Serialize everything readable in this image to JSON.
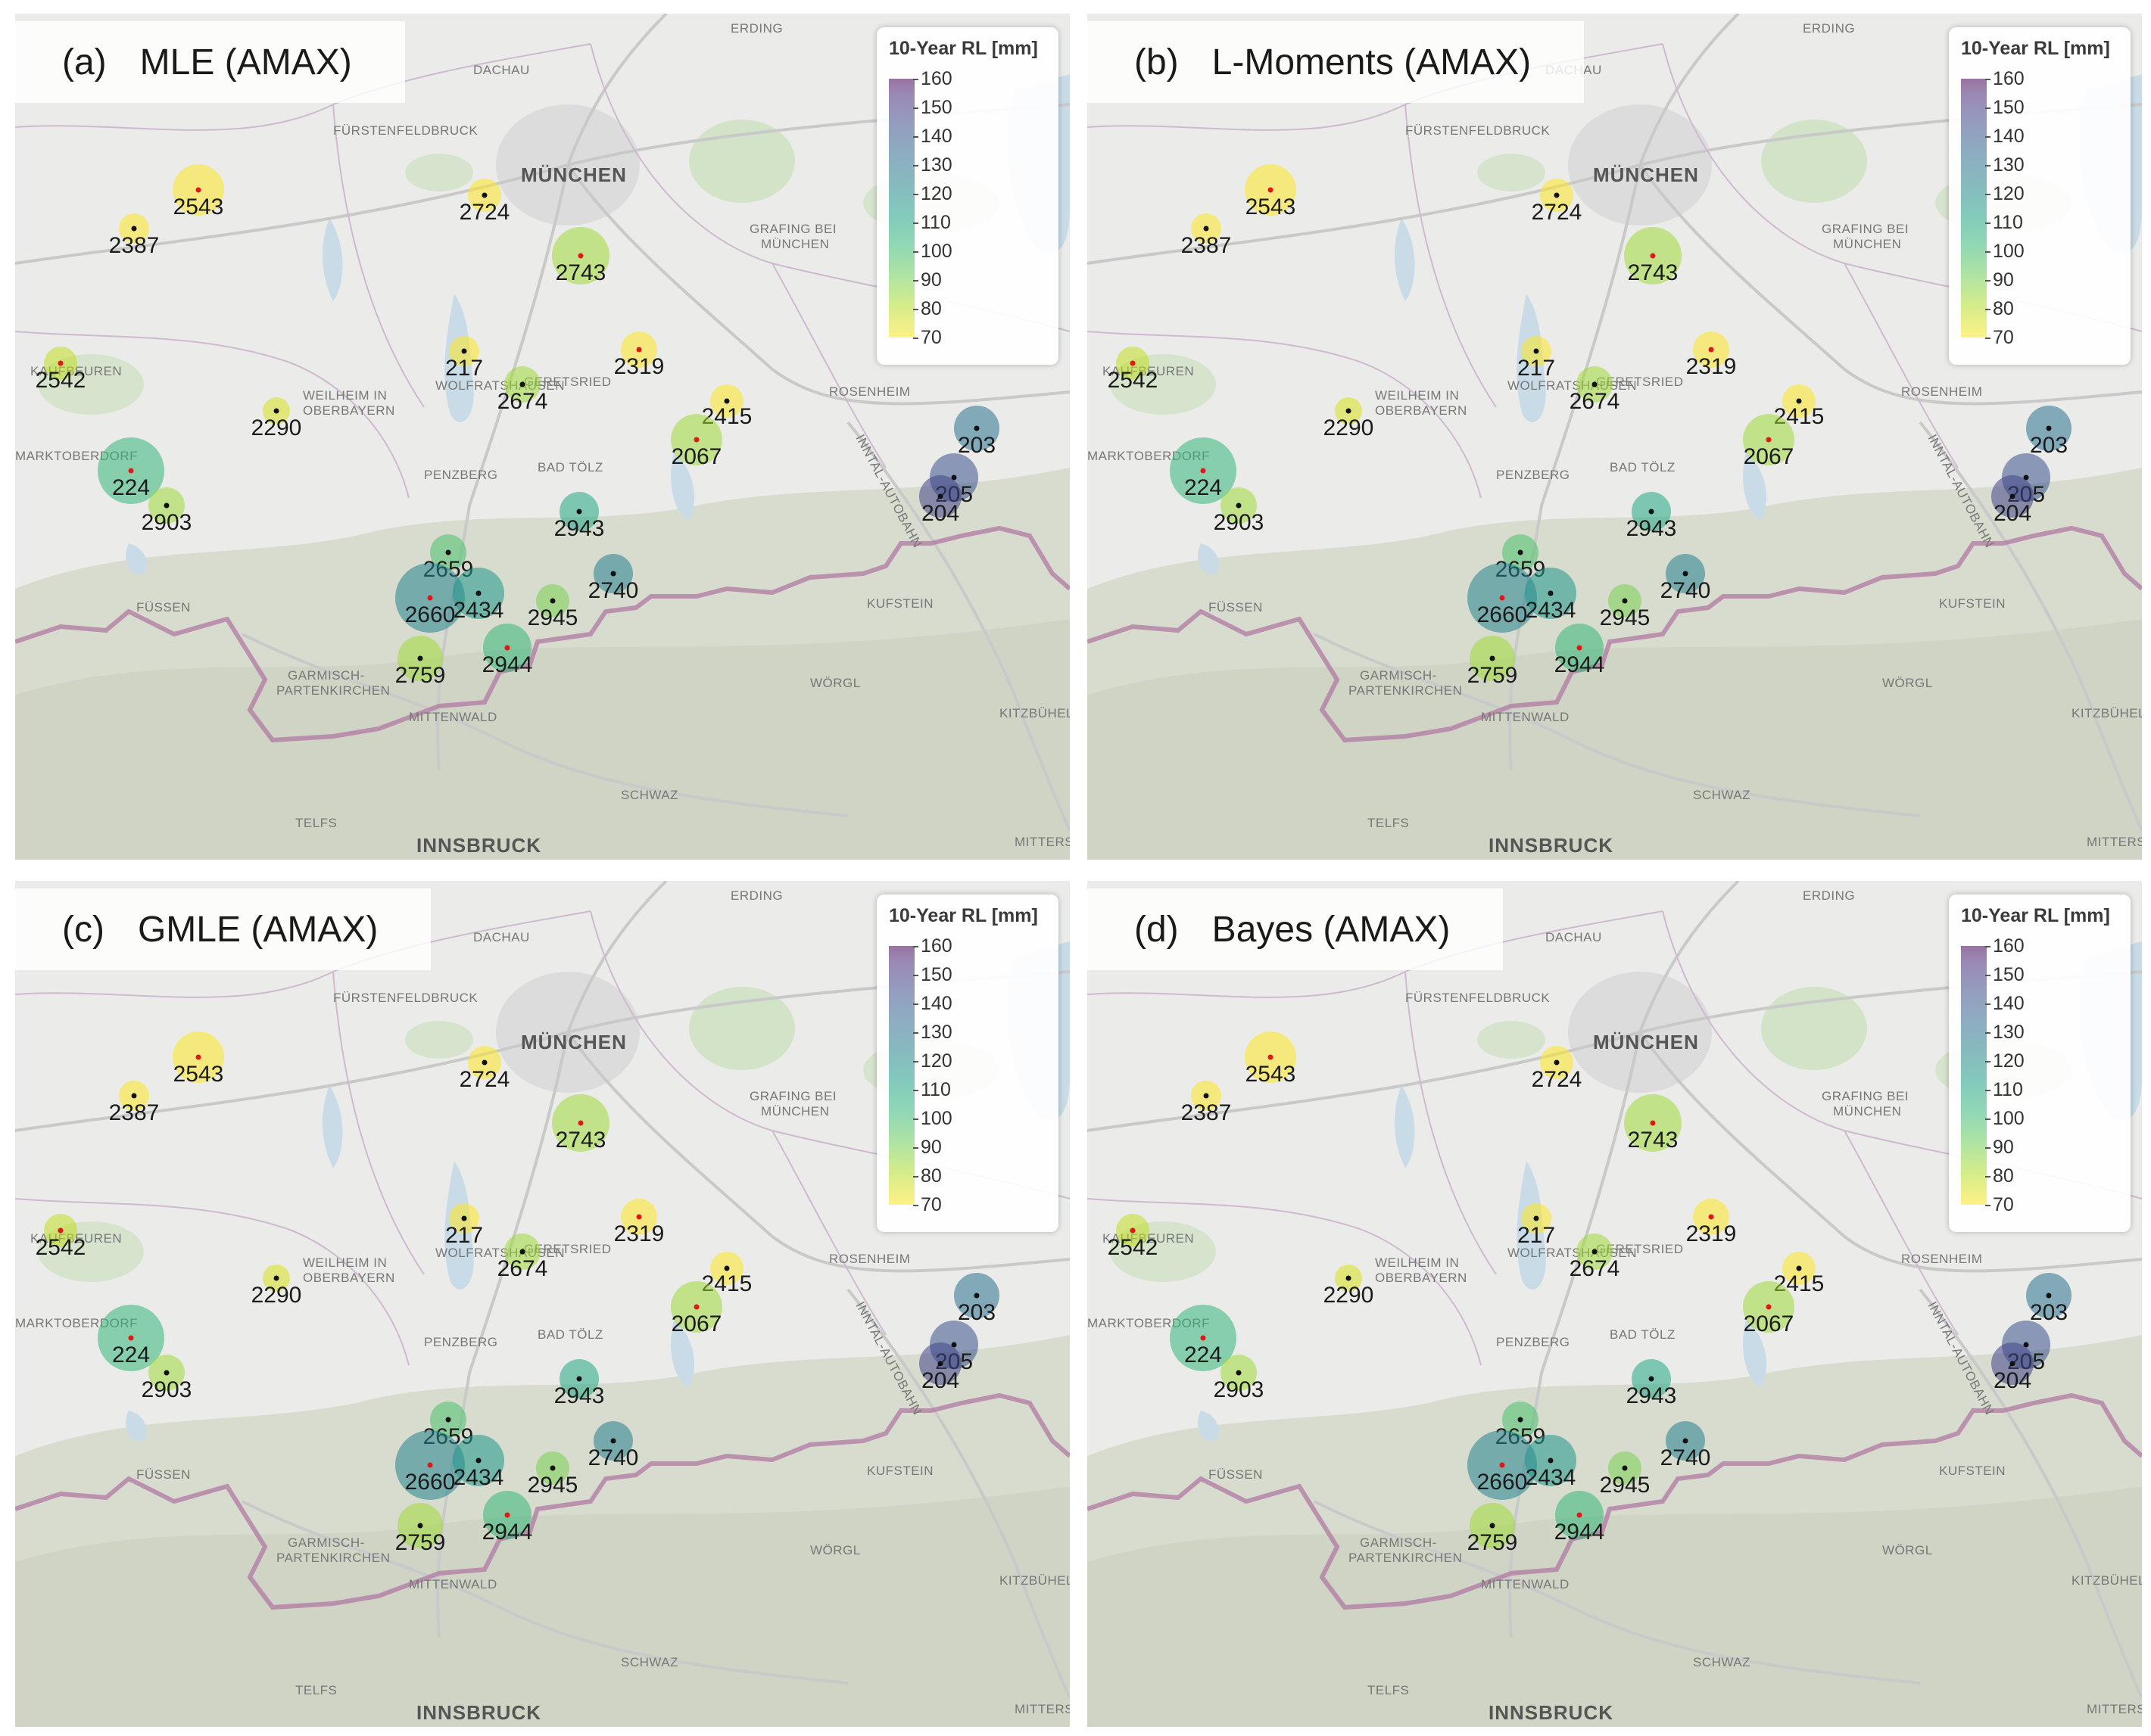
{
  "panels": [
    {
      "tag": "(a)",
      "title": "MLE (AMAX)"
    },
    {
      "tag": "(b)",
      "title": "L-Moments (AMAX)"
    },
    {
      "tag": "(c)",
      "title": "GMLE (AMAX)"
    },
    {
      "tag": "(d)",
      "title": "Bayes (AMAX)"
    }
  ],
  "legend": {
    "title": "10-Year RL [mm]",
    "ticks": [
      "160",
      "150",
      "140",
      "130",
      "120",
      "110",
      "100",
      "90",
      "80",
      "70"
    ],
    "range": [
      70,
      160
    ],
    "colormap": "viridis (reversed, semi-transparent)"
  },
  "place_labels": {
    "erding": "ERDING",
    "dachau": "DACHAU",
    "fuerstenfeldbruck": "FÜRSTENFELDBRUCK",
    "muenchen": "MÜNCHEN",
    "grafing1": "GRAFING BEI",
    "grafing2": "MÜNCHEN",
    "kaufbeuren": "KAUFBEUREN",
    "wolfratshausen": "WOLFRATSHAUSEN",
    "geretsried": "GERETSRIED",
    "weilheim1": "WEILHEIM IN",
    "weilheim2": "OBERBAYERN",
    "rosenheim": "ROSENHEIM",
    "marktoberdorf": "MARKTOBERDORF",
    "penzberg": "PENZBERG",
    "badtoelz": "BAD TÖLZ",
    "inntal": "INNTAL-AUTOBAHN",
    "fuessen": "FÜSSEN",
    "kufstein": "KUFSTEIN",
    "garmisch1": "GARMISCH-",
    "garmisch2": "PARTENKIRCHEN",
    "woergl": "WÖRGL",
    "mittenwald": "MITTENWALD",
    "kitzbuehel": "KITZBÜHEL",
    "schwaz": "SCHWAZ",
    "telfs": "TELFS",
    "innsbruck": "INNSBRUCK",
    "mittersill": "MITTERS"
  },
  "stations": [
    {
      "id": "2543",
      "color": "#fde725",
      "marker": "red"
    },
    {
      "id": "2387",
      "color": "#fde725",
      "marker": "black"
    },
    {
      "id": "2724",
      "color": "#fde725",
      "marker": "black"
    },
    {
      "id": "2743",
      "color": "#a0da39",
      "marker": "red"
    },
    {
      "id": "2542",
      "color": "#c2df23",
      "marker": "red"
    },
    {
      "id": "217",
      "color": "#fde725",
      "marker": "black"
    },
    {
      "id": "2674",
      "color": "#a0da39",
      "marker": "black"
    },
    {
      "id": "2319",
      "color": "#fde725",
      "marker": "red"
    },
    {
      "id": "2290",
      "color": "#d8e219",
      "marker": "black"
    },
    {
      "id": "2415",
      "color": "#fde725",
      "marker": "black"
    },
    {
      "id": "2067",
      "color": "#a0da39",
      "marker": "red"
    },
    {
      "id": "203",
      "color": "#2c728e",
      "marker": "black"
    },
    {
      "id": "224",
      "color": "#35b779",
      "marker": "red"
    },
    {
      "id": "2903",
      "color": "#a0da39",
      "marker": "black"
    },
    {
      "id": "205",
      "color": "#3b528b",
      "marker": "black"
    },
    {
      "id": "204",
      "color": "#414487",
      "marker": "black"
    },
    {
      "id": "2943",
      "color": "#22a884",
      "marker": "black"
    },
    {
      "id": "2659",
      "color": "#4ac16d",
      "marker": "black"
    },
    {
      "id": "2740",
      "color": "#27808e",
      "marker": "black"
    },
    {
      "id": "2660",
      "color": "#25848e",
      "marker": "red"
    },
    {
      "id": "2434",
      "color": "#1f988b",
      "marker": "black"
    },
    {
      "id": "2945",
      "color": "#7ad151",
      "marker": "black"
    },
    {
      "id": "2759",
      "color": "#a0da39",
      "marker": "black"
    },
    {
      "id": "2944",
      "color": "#35b779",
      "marker": "red"
    }
  ]
}
